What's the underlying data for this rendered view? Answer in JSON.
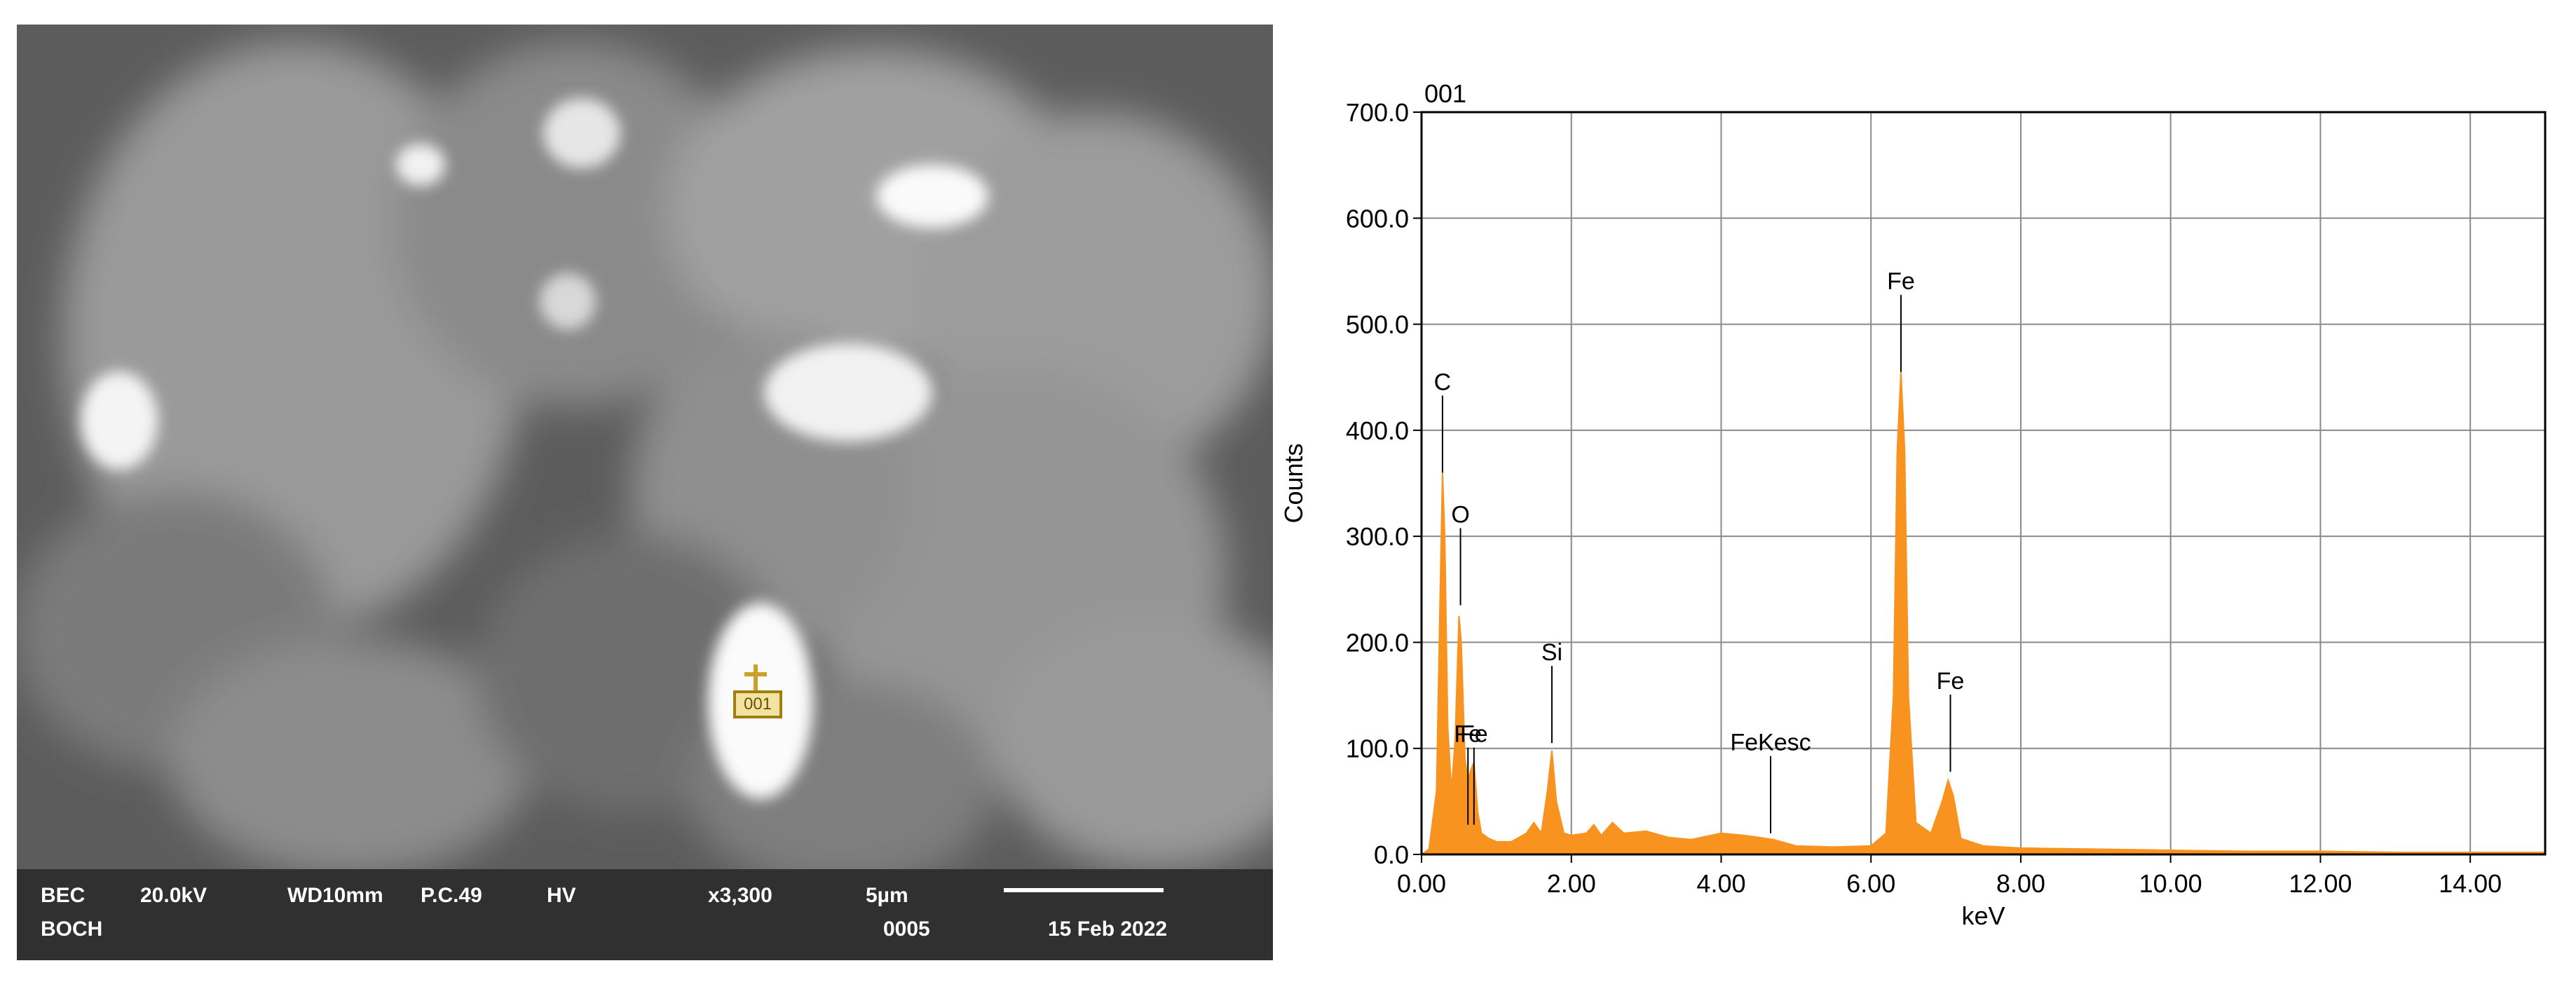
{
  "sem": {
    "marker_label": "001",
    "info_bar": {
      "row1": [
        "BEC",
        "20.0kV",
        "WD10mm",
        "P.C.49",
        "HV",
        "x3,300",
        "5µm"
      ],
      "row2": [
        "BOCH",
        "0005",
        "15 Feb 2022"
      ]
    }
  },
  "chart_data": {
    "type": "area",
    "title": "001",
    "y_label": "Counts",
    "x_label": "keV",
    "color": "#f7931e",
    "x": [
      0.0,
      0.1,
      0.2,
      0.25,
      0.28,
      0.31,
      0.35,
      0.4,
      0.45,
      0.5,
      0.53,
      0.58,
      0.62,
      0.66,
      0.7,
      0.75,
      0.8,
      0.9,
      1.0,
      1.2,
      1.4,
      1.5,
      1.6,
      1.68,
      1.74,
      1.8,
      1.9,
      2.0,
      2.2,
      2.3,
      2.4,
      2.55,
      2.7,
      3.0,
      3.3,
      3.6,
      4.0,
      4.3,
      4.5,
      4.7,
      5.0,
      5.5,
      6.0,
      6.2,
      6.3,
      6.35,
      6.4,
      6.45,
      6.5,
      6.6,
      6.8,
      6.95,
      7.03,
      7.1,
      7.2,
      7.5,
      8.0,
      9.0,
      10.0,
      11.0,
      12.0,
      13.0,
      14.0,
      15.0
    ],
    "values": [
      0,
      5,
      60,
      250,
      360,
      300,
      120,
      60,
      110,
      225,
      200,
      90,
      70,
      80,
      87,
      40,
      20,
      15,
      12,
      12,
      20,
      30,
      20,
      60,
      98,
      50,
      20,
      18,
      20,
      28,
      18,
      30,
      20,
      22,
      16,
      14,
      20,
      18,
      16,
      14,
      8,
      7,
      8,
      20,
      150,
      380,
      455,
      380,
      150,
      30,
      20,
      50,
      70,
      55,
      15,
      8,
      6,
      5,
      4,
      3,
      3,
      2,
      2,
      2
    ],
    "xlim": [
      0,
      15
    ],
    "xticks": [
      {
        "value": 0,
        "label": "0.00"
      },
      {
        "value": 2,
        "label": "2.00"
      },
      {
        "value": 4,
        "label": "4.00"
      },
      {
        "value": 6,
        "label": "6.00"
      },
      {
        "value": 8,
        "label": "8.00"
      },
      {
        "value": 10,
        "label": "10.00"
      },
      {
        "value": 12,
        "label": "12.00"
      },
      {
        "value": 14,
        "label": "14.00"
      }
    ],
    "ylim": [
      0,
      700
    ],
    "yticks": [
      {
        "value": 0,
        "label": "0.0"
      },
      {
        "value": 100,
        "label": "100.0"
      },
      {
        "value": 200,
        "label": "200.0"
      },
      {
        "value": 300,
        "label": "300.0"
      },
      {
        "value": 400,
        "label": "400.0"
      },
      {
        "value": 500,
        "label": "500.0"
      },
      {
        "value": 600,
        "label": "600.0"
      },
      {
        "value": 700,
        "label": "700.0"
      }
    ],
    "grid": true,
    "annotations": [
      {
        "text": "C",
        "x": 0.28,
        "y": 360
      },
      {
        "text": "O",
        "x": 0.52,
        "y": 235
      },
      {
        "text": "Fe",
        "x": 0.7,
        "y": 28
      },
      {
        "text": "Fe",
        "x": 0.62,
        "y": 28
      },
      {
        "text": "Si",
        "x": 1.74,
        "y": 105
      },
      {
        "text": "FeKesc",
        "x": 4.66,
        "y": 20
      },
      {
        "text": "Fe",
        "x": 6.4,
        "y": 455
      },
      {
        "text": "Fe",
        "x": 7.06,
        "y": 78
      }
    ]
  }
}
